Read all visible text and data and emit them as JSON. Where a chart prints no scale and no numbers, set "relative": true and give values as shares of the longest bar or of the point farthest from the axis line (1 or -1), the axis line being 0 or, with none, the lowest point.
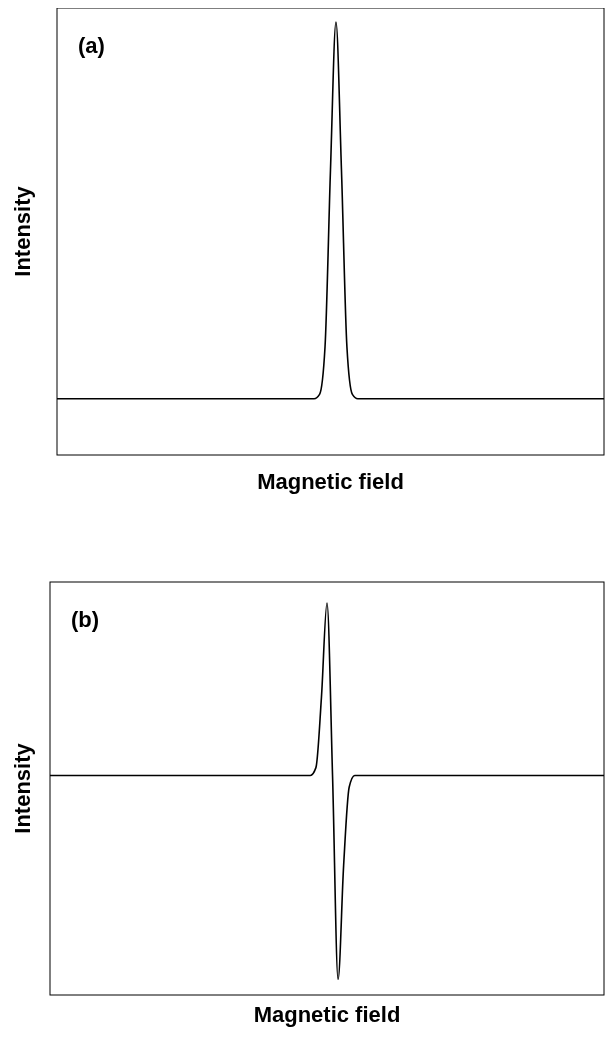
{
  "chart_data": [
    {
      "type": "line",
      "relative": true,
      "xlabel": "Magnetic field",
      "ylabel": "Intensity",
      "annotations": [
        "(a)"
      ],
      "categories": [
        null,
        null,
        null,
        null,
        null,
        null,
        null,
        null,
        null,
        null,
        null,
        null,
        null,
        null,
        null,
        null,
        null,
        null,
        null,
        null,
        null,
        null,
        null,
        null,
        null,
        null,
        null,
        null,
        null,
        null,
        null,
        null,
        null,
        null,
        null,
        null,
        null,
        null,
        null,
        null,
        null,
        null,
        null,
        null,
        null,
        null,
        null,
        null,
        null,
        null,
        null,
        null,
        null,
        null,
        null,
        null,
        null,
        null,
        null,
        null,
        null,
        null,
        null,
        null,
        null,
        null,
        null,
        null,
        null,
        null,
        null,
        null,
        null,
        null,
        null,
        null,
        null,
        null,
        null,
        null,
        null,
        null,
        null,
        null,
        null,
        null,
        null,
        null,
        null,
        null,
        null,
        null,
        null,
        null,
        null,
        null,
        null,
        null,
        null,
        null,
        null
      ],
      "series": [
        {
          "color": "#000000",
          "values": [
            0.13,
            0.13,
            0.13,
            0.13,
            0.13,
            0.13,
            0.13,
            0.13,
            0.13,
            0.13,
            0.13,
            0.13,
            0.13,
            0.13,
            0.13,
            0.13,
            0.13,
            0.13,
            0.13,
            0.13,
            0.13,
            0.13,
            0.13,
            0.13,
            0.13,
            0.13,
            0.13,
            0.13,
            0.13,
            0.13,
            0.13,
            0.13,
            0.13,
            0.13,
            0.13,
            0.13,
            0.13,
            0.13,
            0.13,
            0.13,
            0.13,
            0.13,
            0.13,
            0.13,
            0.13,
            0.13,
            0.13,
            0.13,
            0.14,
            0.25,
            0.66,
            1,
            0.66,
            0.25,
            0.14,
            0.13,
            0.13,
            0.13,
            0.13,
            0.13,
            0.13,
            0.13,
            0.13,
            0.13,
            0.13,
            0.13,
            0.13,
            0.13,
            0.13,
            0.13,
            0.13,
            0.13,
            0.13,
            0.13,
            0.13,
            0.13,
            0.13,
            0.13,
            0.13,
            0.13,
            0.13,
            0.13,
            0.13,
            0.13,
            0.13,
            0.13,
            0.13,
            0.13,
            0.13,
            0.13,
            0.13,
            0.13,
            0.13,
            0.13,
            0.13,
            0.13,
            0.13,
            0.13,
            0.13,
            0.13,
            0.13
          ]
        }
      ]
    },
    {
      "type": "line",
      "relative": true,
      "xlabel": "Magnetic field",
      "ylabel": "Intensity",
      "annotations": [
        "(b)"
      ],
      "categories": [
        null,
        null,
        null,
        null,
        null,
        null,
        null,
        null,
        null,
        null,
        null,
        null,
        null,
        null,
        null,
        null,
        null,
        null,
        null,
        null,
        null,
        null,
        null,
        null,
        null,
        null,
        null,
        null,
        null,
        null,
        null,
        null,
        null,
        null,
        null,
        null,
        null,
        null,
        null,
        null,
        null,
        null,
        null,
        null,
        null,
        null,
        null,
        null,
        null,
        null,
        null,
        null,
        null,
        null,
        null,
        null,
        null,
        null,
        null,
        null,
        null,
        null,
        null,
        null,
        null,
        null,
        null,
        null,
        null,
        null,
        null,
        null,
        null,
        null,
        null,
        null,
        null,
        null,
        null,
        null,
        null,
        null,
        null,
        null,
        null,
        null,
        null,
        null,
        null,
        null,
        null,
        null,
        null,
        null,
        null,
        null,
        null,
        null,
        null,
        null,
        null
      ],
      "series": [
        {
          "color": "#000000",
          "values": [
            0.56,
            0.56,
            0.56,
            0.56,
            0.56,
            0.56,
            0.56,
            0.56,
            0.56,
            0.56,
            0.56,
            0.56,
            0.56,
            0.56,
            0.56,
            0.56,
            0.56,
            0.56,
            0.56,
            0.56,
            0.56,
            0.56,
            0.56,
            0.56,
            0.56,
            0.56,
            0.56,
            0.56,
            0.56,
            0.56,
            0.56,
            0.56,
            0.56,
            0.56,
            0.56,
            0.56,
            0.56,
            0.56,
            0.56,
            0.56,
            0.56,
            0.56,
            0.56,
            0.56,
            0.56,
            0.56,
            0.56,
            0.56,
            0.58,
            0.76,
            1,
            0.56,
            0.04,
            0.33,
            0.53,
            0.56,
            0.56,
            0.56,
            0.56,
            0.56,
            0.56,
            0.56,
            0.56,
            0.56,
            0.56,
            0.56,
            0.56,
            0.56,
            0.56,
            0.56,
            0.56,
            0.56,
            0.56,
            0.56,
            0.56,
            0.56,
            0.56,
            0.56,
            0.56,
            0.56,
            0.56,
            0.56,
            0.56,
            0.56,
            0.56,
            0.56,
            0.56,
            0.56,
            0.56,
            0.56,
            0.56,
            0.56,
            0.56,
            0.56,
            0.56,
            0.56,
            0.56,
            0.56,
            0.56,
            0.56,
            0.56
          ]
        }
      ]
    }
  ]
}
